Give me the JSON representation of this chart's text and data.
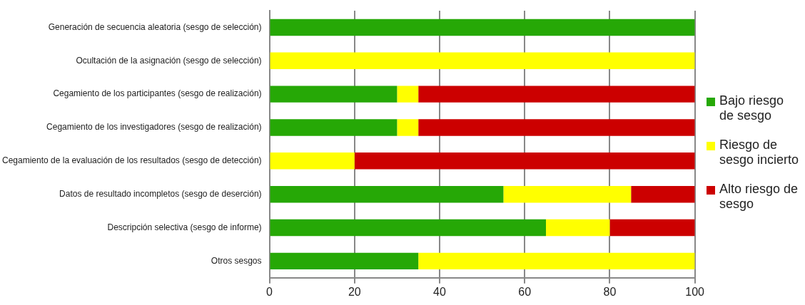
{
  "chart_data": {
    "type": "bar",
    "orientation": "horizontal",
    "stacked": true,
    "categories": [
      "Generación de secuencia aleatoria (sesgo de selección)",
      "Ocultación de la asignación (sesgo de selección)",
      "Cegamiento de los participantes (sesgo de realización)",
      "Cegamiento de los investigadores (sesgo de realización)",
      "Cegamiento de la evaluación de los resultados (sesgo de detección)",
      "Datos de resultado incompletos (sesgo de deserción)",
      "Descripción selectiva (sesgo de informe)",
      "Otros sesgos"
    ],
    "series": [
      {
        "name": "Bajo riesgo de sesgo",
        "color": "#26a806",
        "values": [
          100,
          0,
          30,
          30,
          0,
          55,
          65,
          35
        ]
      },
      {
        "name": "Riesgo de sesgo incierto",
        "color": "#ffff00",
        "values": [
          0,
          100,
          5,
          5,
          20,
          30,
          15,
          65
        ]
      },
      {
        "name": "Alto riesgo de sesgo",
        "color": "#cc0000",
        "values": [
          0,
          0,
          65,
          65,
          80,
          15,
          20,
          0
        ]
      }
    ],
    "xlim": [
      0,
      100
    ],
    "xticks": [
      0,
      20,
      40,
      60,
      80,
      100
    ],
    "grid": "x",
    "legend": "right"
  }
}
